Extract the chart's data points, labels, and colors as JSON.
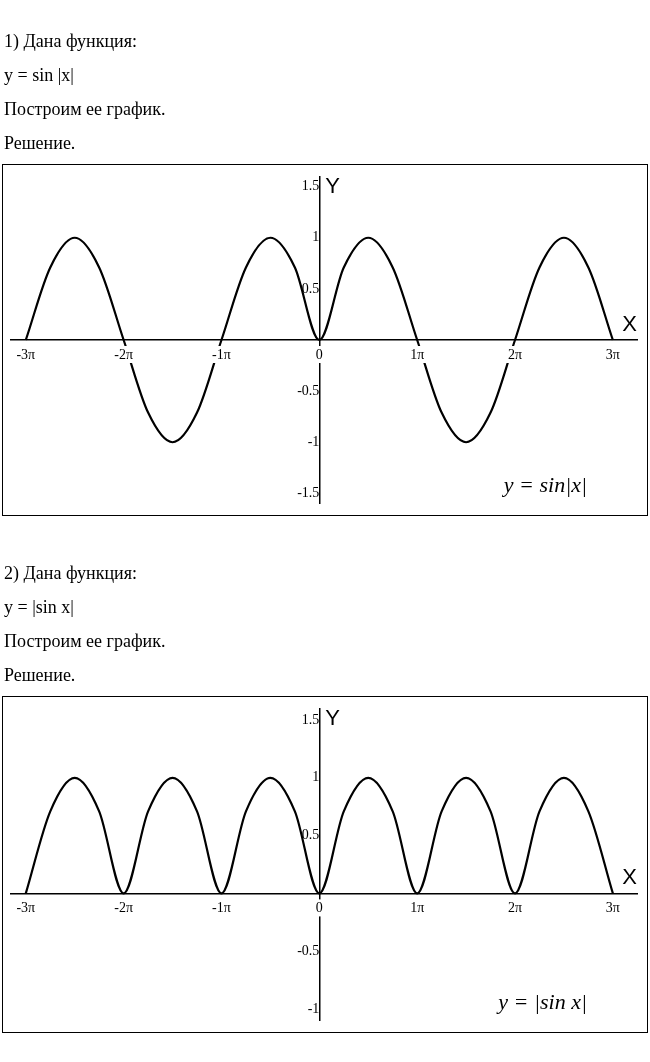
{
  "chart_data": [
    {
      "type": "line",
      "title": "1) Дана функция:",
      "subtitle": "y = sin |x|",
      "annotations": [
        "Построим ее график.",
        "Решение."
      ],
      "xlabel": "X",
      "ylabel": "Y",
      "xlim": [
        -9.9,
        10.2
      ],
      "ylim": [
        -1.6,
        1.6
      ],
      "xticks": [
        {
          "value": -9.425,
          "label": "-3π"
        },
        {
          "value": -6.283,
          "label": "-2π"
        },
        {
          "value": -3.142,
          "label": "-1π"
        },
        {
          "value": 0,
          "label": "0"
        },
        {
          "value": 3.142,
          "label": "1π"
        },
        {
          "value": 6.283,
          "label": "2π"
        },
        {
          "value": 9.425,
          "label": "3π"
        }
      ],
      "yticks": [
        -1.5,
        -1,
        -0.5,
        0.5,
        1,
        1.5
      ],
      "grid": false,
      "legend": false,
      "marker": "none",
      "line_style": "solid",
      "series": [
        {
          "name": "y = sin|x|",
          "color": "#000000",
          "x": [
            -9.425,
            -8.639,
            -7.854,
            -7.069,
            -6.283,
            -5.498,
            -4.712,
            -3.927,
            -3.142,
            -2.356,
            -1.571,
            -0.785,
            0,
            0.785,
            1.571,
            2.356,
            3.142,
            3.927,
            4.712,
            5.498,
            6.283,
            7.069,
            7.854,
            8.639,
            9.425
          ],
          "values": [
            0,
            0.71,
            1,
            0.71,
            0,
            -0.71,
            -1,
            -0.71,
            0,
            0.71,
            1,
            0.71,
            0,
            0.71,
            1,
            0.71,
            0,
            -0.71,
            -1,
            -0.71,
            0,
            0.71,
            1,
            0.71,
            0
          ]
        }
      ]
    },
    {
      "type": "line",
      "title": "2) Дана функция:",
      "subtitle": "y = |sin x|",
      "annotations": [
        "Построим ее график.",
        "Решение."
      ],
      "xlabel": "X",
      "ylabel": "Y",
      "xlim": [
        -9.9,
        10.2
      ],
      "ylim": [
        -1.1,
        1.6
      ],
      "xticks": [
        {
          "value": -9.425,
          "label": "-3π"
        },
        {
          "value": -6.283,
          "label": "-2π"
        },
        {
          "value": -3.142,
          "label": "-1π"
        },
        {
          "value": 0,
          "label": "0"
        },
        {
          "value": 3.142,
          "label": "1π"
        },
        {
          "value": 6.283,
          "label": "2π"
        },
        {
          "value": 9.425,
          "label": "3π"
        }
      ],
      "yticks": [
        -1,
        -0.5,
        0.5,
        1,
        1.5
      ],
      "grid": false,
      "legend": false,
      "marker": "none",
      "line_style": "solid",
      "series": [
        {
          "name": "y = |sin x|",
          "color": "#000000",
          "x": [
            -9.425,
            -8.639,
            -7.854,
            -7.069,
            -6.283,
            -5.498,
            -4.712,
            -3.927,
            -3.142,
            -2.356,
            -1.571,
            -0.785,
            0,
            0.785,
            1.571,
            2.356,
            3.142,
            3.927,
            4.712,
            5.498,
            6.283,
            7.069,
            7.854,
            8.639,
            9.425
          ],
          "values": [
            0,
            0.71,
            1,
            0.71,
            0,
            0.71,
            1,
            0.71,
            0,
            0.71,
            1,
            0.71,
            0,
            0.71,
            1,
            0.71,
            0,
            0.71,
            1,
            0.71,
            0,
            0.71,
            1,
            0.71,
            0
          ]
        }
      ]
    }
  ]
}
